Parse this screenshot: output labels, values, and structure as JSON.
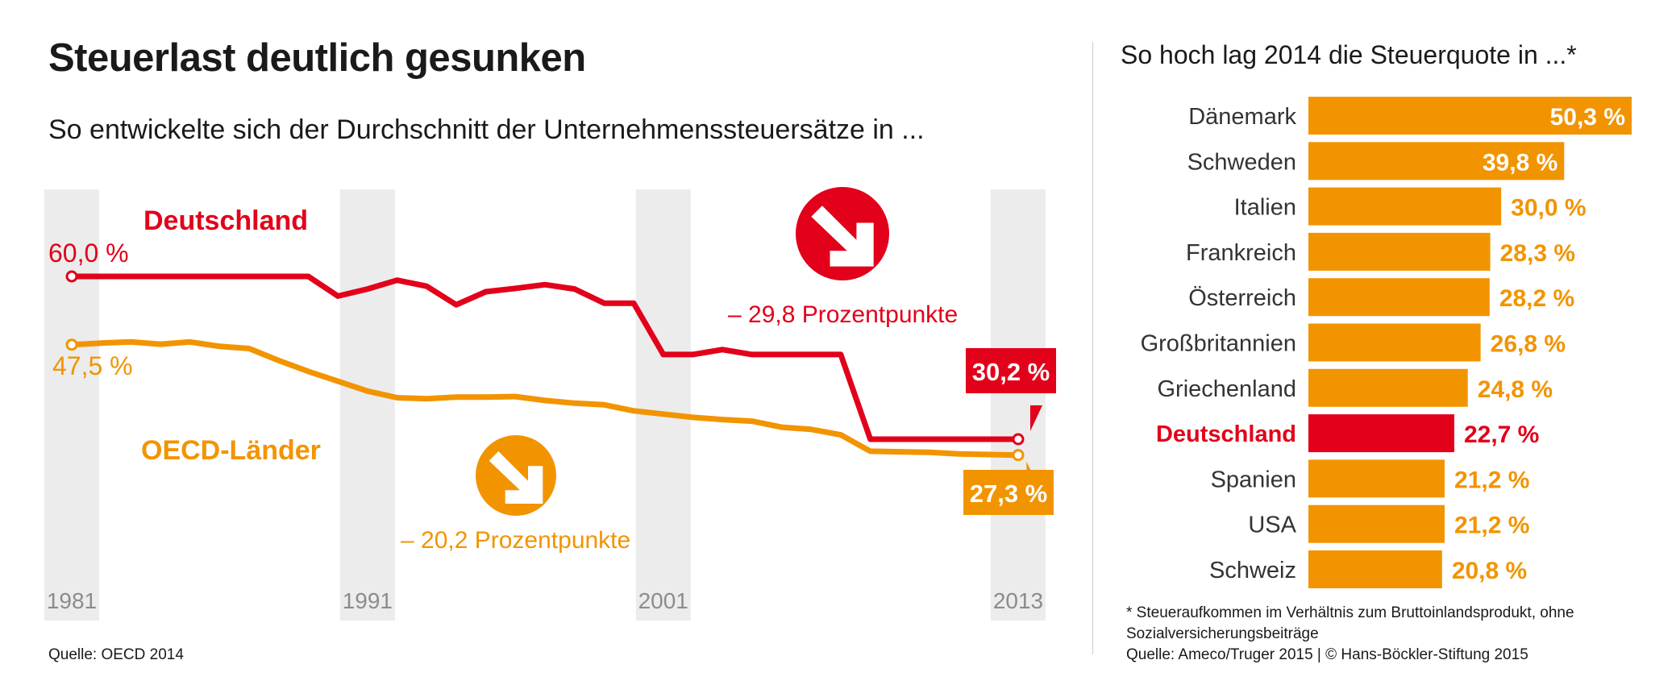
{
  "header": {
    "title": "Steuerlast deutlich gesunken",
    "subtitle": "So entwickelte sich der Durchschnitt der Unternehmenssteuersätze in ...",
    "right_title": "So hoch lag 2014 die Steuerquote in ...*"
  },
  "sources": {
    "line_source": "Quelle: OECD 2014",
    "bar_footnote": "* Steueraufkommen im Verhältnis zum Bruttoinlandsprodukt, ohne Sozialversicherungsbeiträge",
    "bar_source": "Quelle: Ameco/Truger 2015 | © Hans-Böckler-Stiftung 2015"
  },
  "colors": {
    "red": "#e2001a",
    "orange": "#f29400",
    "band": "#ececec",
    "year_label": "#8c8c8c"
  },
  "chart_data": [
    {
      "type": "line",
      "x_range": [
        1981,
        2013
      ],
      "y_range": [
        24,
        62
      ],
      "highlight_years": [
        "1981",
        "1991",
        "2001",
        "2013"
      ],
      "series": [
        {
          "name": "Deutschland",
          "color": "#e2001a",
          "start_label": "60,0 %",
          "end_label": "30,2 %",
          "change_label": "– 29,8 Prozentpunkte",
          "x": [
            1981,
            1982,
            1983,
            1984,
            1985,
            1986,
            1987,
            1988,
            1989,
            1990,
            1991,
            1992,
            1993,
            1994,
            1995,
            1996,
            1997,
            1998,
            1999,
            2000,
            2001,
            2002,
            2003,
            2004,
            2005,
            2006,
            2007,
            2008,
            2009,
            2010,
            2011,
            2012,
            2013
          ],
          "y": [
            60.0,
            60.0,
            60.0,
            60.0,
            60.0,
            60.0,
            60.0,
            60.0,
            60.0,
            56.4,
            57.7,
            59.3,
            58.2,
            54.8,
            57.2,
            57.8,
            58.5,
            57.7,
            55.1,
            55.1,
            45.7,
            45.7,
            46.6,
            45.7,
            45.7,
            45.7,
            45.7,
            30.2,
            30.2,
            30.2,
            30.2,
            30.2,
            30.2
          ]
        },
        {
          "name": "OECD-Länder",
          "color": "#f29400",
          "start_label": "47,5 %",
          "end_label": "27,3 %",
          "change_label": "– 20,2 Prozentpunkte",
          "x": [
            1981,
            1982,
            1983,
            1984,
            1985,
            1986,
            1987,
            1988,
            1989,
            1990,
            1991,
            1992,
            1993,
            1994,
            1995,
            1996,
            1997,
            1998,
            1999,
            2000,
            2001,
            2002,
            2003,
            2004,
            2005,
            2006,
            2007,
            2008,
            2009,
            2010,
            2011,
            2012,
            2013
          ],
          "y": [
            47.5,
            47.8,
            48.0,
            47.6,
            48.0,
            47.2,
            46.8,
            44.6,
            42.6,
            40.8,
            39.0,
            37.8,
            37.6,
            37.9,
            37.9,
            38.0,
            37.3,
            36.8,
            36.5,
            35.4,
            34.8,
            34.2,
            33.8,
            33.5,
            32.4,
            32.0,
            31.0,
            28.0,
            27.9,
            27.8,
            27.5,
            27.4,
            27.3
          ]
        }
      ]
    },
    {
      "type": "bar",
      "orientation": "horizontal",
      "x_range": [
        0,
        50.3
      ],
      "highlight": "Deutschland",
      "categories": [
        "Dänemark",
        "Schweden",
        "Italien",
        "Frankreich",
        "Österreich",
        "Großbritannien",
        "Griechenland",
        "Deutschland",
        "Spanien",
        "USA",
        "Schweiz"
      ],
      "values": [
        50.3,
        39.8,
        30.0,
        28.3,
        28.2,
        26.8,
        24.8,
        22.7,
        21.2,
        21.2,
        20.8
      ],
      "value_labels": [
        "50,3 %",
        "39,8 %",
        "30,0 %",
        "28,3 %",
        "28,2 %",
        "26,8 %",
        "24,8 %",
        "22,7 %",
        "21,2 %",
        "21,2 %",
        "20,8 %"
      ]
    }
  ]
}
